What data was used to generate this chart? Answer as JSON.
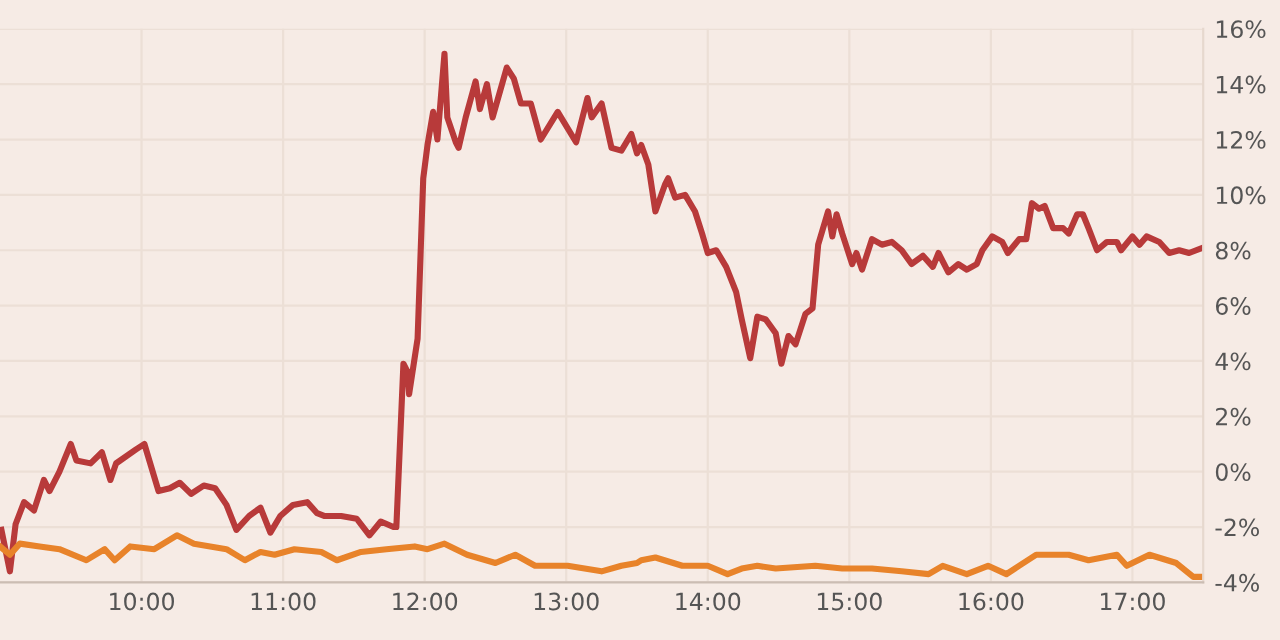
{
  "chart_data": {
    "type": "line",
    "series": [
      {
        "color": "#b83a3a",
        "x": [
          9.01,
          9.07,
          9.11,
          9.17,
          9.24,
          9.31,
          9.35,
          9.42,
          9.5,
          9.54,
          9.64,
          9.72,
          9.78,
          9.82,
          9.96,
          10.02,
          10.12,
          10.2,
          10.27,
          10.35,
          10.44,
          10.52,
          10.6,
          10.67,
          10.76,
          10.84,
          10.91,
          10.98,
          11.07,
          11.17,
          11.24,
          11.29,
          11.41,
          11.52,
          11.61,
          11.69,
          11.78,
          11.8,
          11.85,
          11.88,
          11.89,
          11.95,
          11.99,
          12.02,
          12.06,
          12.09,
          12.14,
          12.16,
          12.22,
          12.24,
          12.29,
          12.36,
          12.39,
          12.44,
          12.48,
          12.58,
          12.63,
          12.68,
          12.75,
          12.82,
          12.94,
          13.07,
          13.15,
          13.18,
          13.25,
          13.32,
          13.39,
          13.46,
          13.5,
          13.53,
          13.58,
          13.63,
          13.7,
          13.72,
          13.77,
          13.84,
          13.91,
          13.96,
          14.0,
          14.06,
          14.13,
          14.2,
          14.24,
          14.3,
          14.35,
          14.41,
          14.48,
          14.52,
          14.57,
          14.62,
          14.69,
          14.74,
          14.78,
          14.85,
          14.88,
          14.91,
          14.95,
          15.02,
          15.05,
          15.09,
          15.16,
          15.23,
          15.3,
          15.37,
          15.44,
          15.52,
          15.59,
          15.63,
          15.7,
          15.77,
          15.83,
          15.9,
          15.94,
          16.01,
          16.08,
          16.12,
          16.2,
          16.25,
          16.29,
          16.34,
          16.38,
          16.44,
          16.51,
          16.55,
          16.61,
          16.65,
          16.69,
          16.75,
          16.82,
          16.89,
          16.92,
          17.0,
          17.05,
          17.1,
          17.19,
          17.26,
          17.33,
          17.4,
          17.5
        ],
        "values": [
          -2.1,
          -3.6,
          -1.9,
          -1.1,
          -1.4,
          -0.3,
          -0.7,
          0.0,
          1.0,
          0.4,
          0.3,
          0.7,
          -0.3,
          0.3,
          0.8,
          1.0,
          -0.7,
          -0.6,
          -0.4,
          -0.8,
          -0.5,
          -0.6,
          -1.2,
          -2.1,
          -1.6,
          -1.3,
          -2.2,
          -1.6,
          -1.2,
          -1.1,
          -1.5,
          -1.6,
          -1.6,
          -1.7,
          -2.3,
          -1.8,
          -2.0,
          -2.0,
          3.9,
          3.6,
          2.8,
          4.8,
          10.6,
          11.8,
          13.0,
          12.0,
          15.1,
          12.8,
          11.9,
          11.7,
          12.8,
          14.1,
          13.1,
          14.0,
          12.8,
          14.6,
          14.2,
          13.3,
          13.3,
          12.0,
          13.0,
          11.9,
          13.5,
          12.8,
          13.3,
          11.7,
          11.6,
          12.2,
          11.5,
          11.8,
          11.1,
          9.4,
          10.4,
          10.6,
          9.9,
          10.0,
          9.4,
          8.6,
          7.9,
          8.0,
          7.4,
          6.5,
          5.5,
          4.1,
          5.6,
          5.5,
          5.0,
          3.9,
          4.9,
          4.6,
          5.7,
          5.9,
          8.2,
          9.4,
          8.5,
          9.3,
          8.6,
          7.5,
          7.9,
          7.3,
          8.4,
          8.2,
          8.3,
          8.0,
          7.5,
          7.8,
          7.4,
          7.9,
          7.2,
          7.5,
          7.3,
          7.5,
          8.0,
          8.5,
          8.3,
          7.9,
          8.4,
          8.4,
          9.7,
          9.5,
          9.6,
          8.8,
          8.8,
          8.6,
          9.3,
          9.3,
          8.8,
          8.0,
          8.3,
          8.3,
          8.0,
          8.5,
          8.2,
          8.5,
          8.3,
          7.9,
          8.0,
          7.9,
          8.1
        ]
      },
      {
        "color": "#e8832a",
        "x": [
          9.0,
          9.07,
          9.14,
          9.28,
          9.42,
          9.61,
          9.74,
          9.81,
          9.92,
          10.09,
          10.25,
          10.37,
          10.6,
          10.73,
          10.84,
          10.94,
          11.08,
          11.27,
          11.38,
          11.55,
          11.73,
          11.93,
          12.02,
          12.14,
          12.3,
          12.5,
          12.64,
          12.78,
          13.01,
          13.25,
          13.39,
          13.5,
          13.53,
          13.63,
          13.82,
          14.0,
          14.14,
          14.24,
          14.35,
          14.48,
          14.76,
          14.95,
          15.16,
          15.37,
          15.56,
          15.66,
          15.83,
          15.98,
          16.11,
          16.2,
          16.32,
          16.55,
          16.69,
          16.89,
          16.96,
          17.12,
          17.31,
          17.43,
          17.5
        ],
        "values": [
          -2.7,
          -3.0,
          -2.6,
          -2.7,
          -2.8,
          -3.2,
          -2.8,
          -3.2,
          -2.7,
          -2.8,
          -2.3,
          -2.6,
          -2.8,
          -3.2,
          -2.9,
          -3.0,
          -2.8,
          -2.9,
          -3.2,
          -2.9,
          -2.8,
          -2.7,
          -2.8,
          -2.6,
          -3.0,
          -3.3,
          -3.0,
          -3.4,
          -3.4,
          -3.6,
          -3.4,
          -3.3,
          -3.2,
          -3.1,
          -3.4,
          -3.4,
          -3.7,
          -3.5,
          -3.4,
          -3.5,
          -3.4,
          -3.5,
          -3.5,
          -3.6,
          -3.7,
          -3.4,
          -3.7,
          -3.4,
          -3.7,
          -3.4,
          -3.0,
          -3.0,
          -3.2,
          -3.0,
          -3.4,
          -3.0,
          -3.3,
          -3.8,
          -3.8
        ]
      }
    ],
    "xlim": [
      9.0,
      17.5
    ],
    "xticks": [
      {
        "value": 10,
        "label": "10:00"
      },
      {
        "value": 11,
        "label": "11:00"
      },
      {
        "value": 12,
        "label": "12:00"
      },
      {
        "value": 13,
        "label": "13:00"
      },
      {
        "value": 14,
        "label": "14:00"
      },
      {
        "value": 15,
        "label": "15:00"
      },
      {
        "value": 16,
        "label": "16:00"
      },
      {
        "value": 17,
        "label": "17:00"
      }
    ],
    "ylim": [
      -4,
      16
    ],
    "yticks": [
      {
        "value": -4,
        "label": "-4%"
      },
      {
        "value": -2,
        "label": "-2%"
      },
      {
        "value": 0,
        "label": "0%"
      },
      {
        "value": 2,
        "label": "2%"
      },
      {
        "value": 4,
        "label": "4%"
      },
      {
        "value": 6,
        "label": "6%"
      },
      {
        "value": 8,
        "label": "8%"
      },
      {
        "value": 10,
        "label": "10%"
      },
      {
        "value": 12,
        "label": "12%"
      },
      {
        "value": 14,
        "label": "14%"
      },
      {
        "value": 16,
        "label": "16%"
      }
    ],
    "grid": true,
    "line_style": "solid"
  }
}
